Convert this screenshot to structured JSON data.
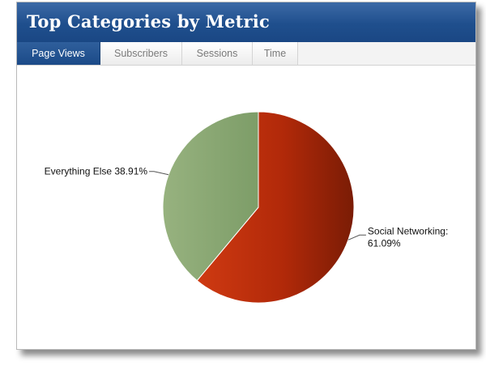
{
  "header": {
    "title": "Top Categories by Metric"
  },
  "tabs": [
    {
      "label": "Page Views",
      "active": true
    },
    {
      "label": "Subscribers",
      "active": false
    },
    {
      "label": "Sessions",
      "active": false
    },
    {
      "label": "Time",
      "active": false
    }
  ],
  "colors": {
    "header_blue": "#1f4f8d",
    "slice_social": "#b52a0c",
    "slice_else": "#8aa873"
  },
  "chart_data": {
    "type": "pie",
    "title": "",
    "slices": [
      {
        "label": "Social Networking:",
        "value": 61.09,
        "value_label": "61.09%",
        "color": "#b52a0c"
      },
      {
        "label": "Everything Else",
        "value": 38.91,
        "value_label": "38.91%",
        "color": "#8aa873"
      }
    ],
    "legend": "none"
  }
}
